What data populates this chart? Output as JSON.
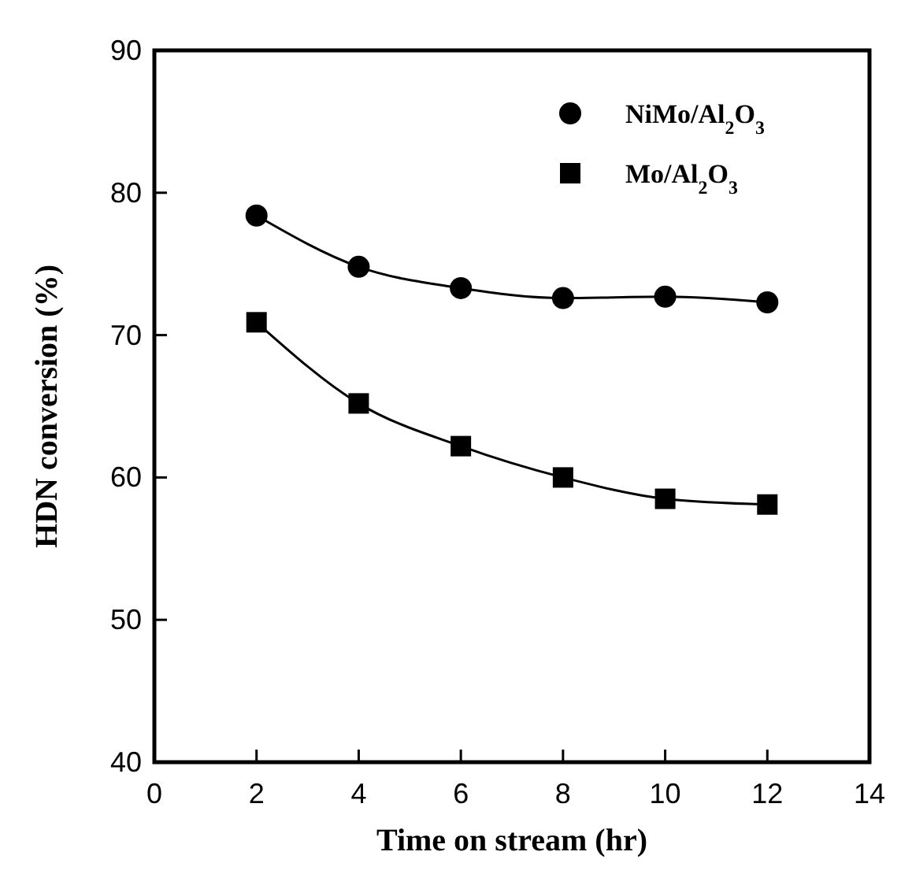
{
  "chart_data": {
    "type": "line",
    "xlabel": "Time on stream (hr)",
    "ylabel": "HDN conversion (%)",
    "x": [
      2,
      4,
      6,
      8,
      10,
      12
    ],
    "xlim": [
      0,
      14
    ],
    "xticks": [
      0,
      2,
      4,
      6,
      8,
      10,
      12,
      14
    ],
    "ylim": [
      40,
      90
    ],
    "yticks": [
      40,
      50,
      60,
      70,
      80,
      90
    ],
    "grid": false,
    "legend": "top right",
    "line_style": "solid",
    "series": [
      {
        "name": "NiMo/Al$_{2}$O$_{3}$",
        "color": "#000000",
        "marker": "circle",
        "values": [
          78.4,
          74.8,
          73.3,
          72.6,
          72.7,
          72.3
        ]
      },
      {
        "name": "Mo/Al$_{2}$O$_{3}$",
        "color": "#000000",
        "marker": "square",
        "values": [
          70.9,
          65.2,
          62.2,
          60.0,
          58.5,
          58.1
        ]
      }
    ]
  }
}
